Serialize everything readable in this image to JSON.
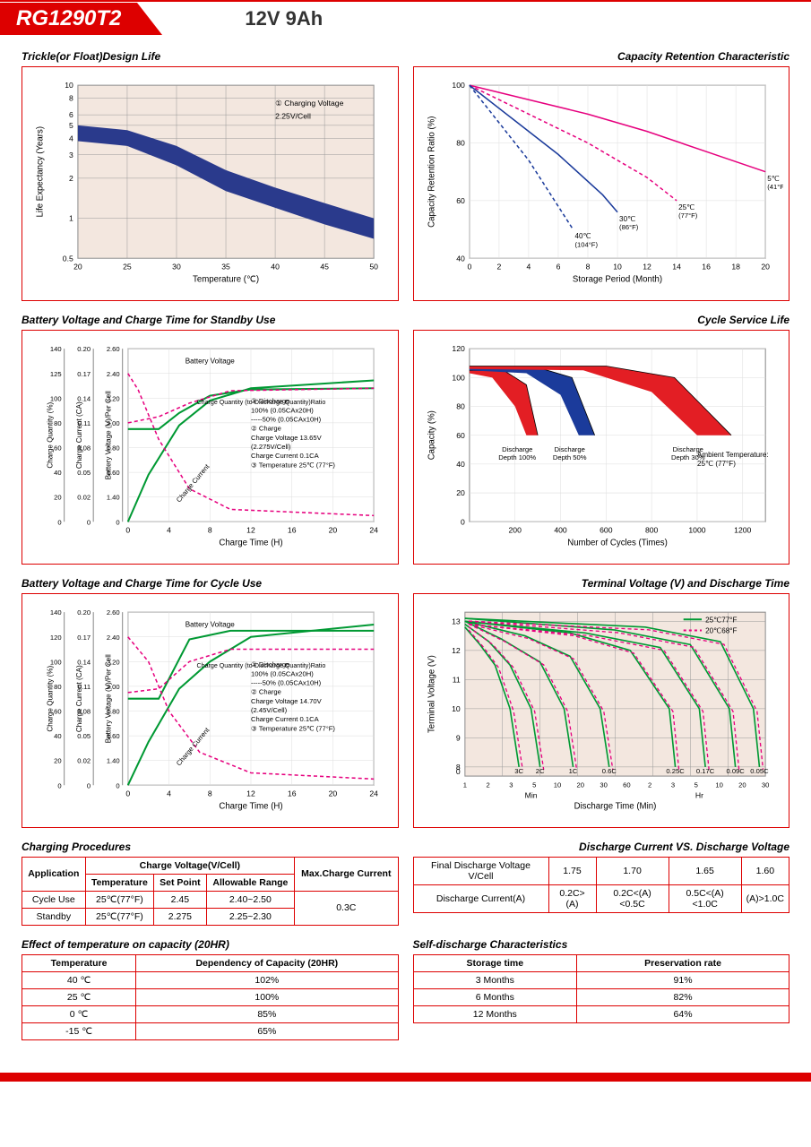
{
  "header": {
    "model": "RG1290T2",
    "spec": "12V  9Ah"
  },
  "charts": {
    "trickle": {
      "title": "Trickle(or Float)Design Life",
      "xlabel": "Temperature (℃)",
      "ylabel": "Life Expectancy (Years)",
      "yticks": [
        "0.5",
        "1",
        "2",
        "3",
        "4",
        "5",
        "6",
        "8",
        "10"
      ],
      "xticks": [
        "20",
        "25",
        "30",
        "35",
        "40",
        "45",
        "50"
      ],
      "note1": "① Charging Voltage",
      "note2": "2.25V/Cell",
      "bg": "#f3e7df",
      "band_color": "#2a3a8c",
      "upper": [
        [
          20,
          5
        ],
        [
          25,
          4.6
        ],
        [
          30,
          3.5
        ],
        [
          35,
          2.3
        ],
        [
          40,
          1.7
        ],
        [
          45,
          1.3
        ],
        [
          50,
          1.0
        ]
      ],
      "lower": [
        [
          20,
          3.8
        ],
        [
          25,
          3.5
        ],
        [
          30,
          2.5
        ],
        [
          35,
          1.6
        ],
        [
          40,
          1.2
        ],
        [
          45,
          0.9
        ],
        [
          50,
          0.7
        ]
      ]
    },
    "retention": {
      "title": "Capacity Retention Characteristic",
      "xlabel": "Storage Period (Month)",
      "ylabel": "Capacity Retention Ratio (%)",
      "xticks": [
        "0",
        "2",
        "4",
        "6",
        "8",
        "10",
        "12",
        "14",
        "16",
        "18",
        "20"
      ],
      "yticks": [
        "40",
        "60",
        "80",
        "100"
      ],
      "series": [
        {
          "color": "#e6007e",
          "label": "5℃",
          "sub": "(41°F)",
          "style": "solid",
          "pts": [
            [
              0,
              100
            ],
            [
              4,
              95
            ],
            [
              8,
              90
            ],
            [
              12,
              84
            ],
            [
              16,
              77
            ],
            [
              20,
              70
            ]
          ]
        },
        {
          "color": "#e6007e",
          "label": "25℃",
          "sub": "(77°F)",
          "style": "dash",
          "pts": [
            [
              0,
              100
            ],
            [
              4,
              90
            ],
            [
              8,
              80
            ],
            [
              12,
              68
            ],
            [
              14,
              60
            ]
          ]
        },
        {
          "color": "#1b3b9b",
          "label": "30℃",
          "sub": "(86°F)",
          "style": "solid",
          "pts": [
            [
              0,
              100
            ],
            [
              3,
              88
            ],
            [
              6,
              76
            ],
            [
              9,
              62
            ],
            [
              10,
              56
            ]
          ]
        },
        {
          "color": "#1b3b9b",
          "label": "40℃",
          "sub": "(104°F)",
          "style": "dash",
          "pts": [
            [
              0,
              100
            ],
            [
              2,
              87
            ],
            [
              4,
              74
            ],
            [
              6,
              58
            ],
            [
              7,
              50
            ]
          ]
        }
      ]
    },
    "standby": {
      "title": "Battery Voltage and Charge Time for Standby Use",
      "xlabel": "Charge Time (H)",
      "xticks": [
        "0",
        "4",
        "8",
        "12",
        "16",
        "20",
        "24"
      ],
      "y1_label": "Charge Quantity (%)",
      "y1_ticks": [
        "0",
        "20",
        "40",
        "60",
        "80",
        "100",
        "125",
        "140"
      ],
      "y2_label": "Charge Current (CA)",
      "y2_ticks": [
        "0",
        "0.02",
        "0.05",
        "0.08",
        "0.11",
        "0.14",
        "0.17",
        "0.20"
      ],
      "y3_label": "Battery Voltage (V)/Per Cell",
      "y3_ticks": [
        "0",
        "1.40",
        "1.60",
        "1.80",
        "2.00",
        "2.20",
        "2.40",
        "2.60"
      ],
      "note_bv": "Battery Voltage",
      "note_cq": "Charge Quantity (to-Discharge Quantity)Ratio",
      "note_cc": "Charge Current",
      "notes": [
        "① Discharge",
        "   100% (0.05CAx20H)",
        "-----50% (0.05CAx10H)",
        "② Charge",
        "   Charge Voltage 13.65V",
        "   (2.275V/Cell)",
        "   Charge Current 0.1CA",
        "③ Temperature 25℃ (77°F)"
      ],
      "green_volt": [
        [
          0,
          1.95
        ],
        [
          3,
          1.95
        ],
        [
          5,
          2.08
        ],
        [
          8,
          2.22
        ],
        [
          12,
          2.27
        ],
        [
          24,
          2.28
        ]
      ],
      "green_qty": [
        [
          0,
          0
        ],
        [
          2,
          38
        ],
        [
          5,
          78
        ],
        [
          8,
          98
        ],
        [
          12,
          110
        ],
        [
          24,
          118
        ]
      ],
      "pink_curr": [
        [
          0,
          0.17
        ],
        [
          1,
          0.15
        ],
        [
          3,
          0.09
        ],
        [
          6,
          0.03
        ],
        [
          10,
          0.01
        ],
        [
          24,
          0.005
        ]
      ],
      "pink_volt": [
        [
          0,
          2.0
        ],
        [
          3,
          2.05
        ],
        [
          6,
          2.16
        ],
        [
          10,
          2.26
        ],
        [
          24,
          2.28
        ]
      ]
    },
    "cycle_life": {
      "title": "Cycle Service Life",
      "xlabel": "Number of Cycles (Times)",
      "ylabel": "Capacity (%)",
      "xticks": [
        "200",
        "400",
        "600",
        "800",
        "1000",
        "1200"
      ],
      "yticks": [
        "0",
        "20",
        "40",
        "60",
        "80",
        "100",
        "120"
      ],
      "note": "Ambient Temperature:\n25℃ (77°F)",
      "bands": [
        {
          "color": "#e31e24",
          "label": "Discharge\nDepth 100%",
          "upper": [
            [
              0,
              105
            ],
            [
              150,
              105
            ],
            [
              250,
              95
            ],
            [
              300,
              60
            ]
          ],
          "lower": [
            [
              0,
              103
            ],
            [
              100,
              100
            ],
            [
              200,
              80
            ],
            [
              250,
              60
            ]
          ]
        },
        {
          "color": "#1b3b9b",
          "label": "Discharge\nDepth 50%",
          "upper": [
            [
              0,
              107
            ],
            [
              300,
              107
            ],
            [
              450,
              100
            ],
            [
              550,
              60
            ]
          ],
          "lower": [
            [
              0,
              105
            ],
            [
              250,
              103
            ],
            [
              400,
              88
            ],
            [
              480,
              60
            ]
          ]
        },
        {
          "color": "#e31e24",
          "label": "Discharge\nDepth 30%",
          "upper": [
            [
              0,
              108
            ],
            [
              600,
              108
            ],
            [
              900,
              100
            ],
            [
              1150,
              60
            ]
          ],
          "lower": [
            [
              0,
              106
            ],
            [
              500,
              105
            ],
            [
              800,
              90
            ],
            [
              1000,
              60
            ]
          ]
        }
      ]
    },
    "cycle": {
      "title": "Battery Voltage and Charge Time for Cycle Use",
      "xlabel": "Charge Time (H)",
      "xticks": [
        "0",
        "4",
        "8",
        "12",
        "16",
        "20",
        "24"
      ],
      "y1_label": "Charge Quantity (%)",
      "y1_ticks": [
        "0",
        "20",
        "40",
        "60",
        "80",
        "100",
        "120",
        "140"
      ],
      "y2_label": "Charge Current (CA)",
      "y2_ticks": [
        "0",
        "0.02",
        "0.05",
        "0.08",
        "0.11",
        "0.14",
        "0.17",
        "0.20"
      ],
      "y3_label": "Battery Voltage (V)/Per Cell",
      "y3_ticks": [
        "0",
        "1.40",
        "1.60",
        "1.80",
        "2.00",
        "2.20",
        "2.40",
        "2.60"
      ],
      "note_bv": "Battery Voltage",
      "note_cq": "Charge Quantity (to-Discharge Quantity)Ratio",
      "note_cc": "Charge Current",
      "notes": [
        "① Discharge",
        "   100% (0.05CAx20H)",
        "-----50% (0.05CAx10H)",
        "② Charge",
        "   Charge Voltage 14.70V",
        "   (2.45V/Cell)",
        "   Charge Current 0.1CA",
        "③ Temperature 25℃ (77°F)"
      ],
      "green_volt": [
        [
          0,
          1.9
        ],
        [
          3,
          1.9
        ],
        [
          6,
          2.38
        ],
        [
          10,
          2.45
        ],
        [
          24,
          2.45
        ]
      ],
      "green_qty": [
        [
          0,
          0
        ],
        [
          2,
          35
        ],
        [
          5,
          78
        ],
        [
          8,
          100
        ],
        [
          12,
          120
        ],
        [
          24,
          130
        ]
      ],
      "pink_curr": [
        [
          0,
          0.17
        ],
        [
          2,
          0.14
        ],
        [
          4,
          0.08
        ],
        [
          7,
          0.03
        ],
        [
          12,
          0.01
        ],
        [
          24,
          0.005
        ]
      ],
      "pink_volt": [
        [
          0,
          1.95
        ],
        [
          3,
          1.98
        ],
        [
          6,
          2.2
        ],
        [
          10,
          2.3
        ],
        [
          24,
          2.3
        ]
      ]
    },
    "discharge": {
      "title": "Terminal Voltage (V) and Discharge Time",
      "xlabel": "Discharge Time (Min)",
      "ylabel": "Terminal Voltage (V)",
      "yticks": [
        "0",
        "8",
        "9",
        "10",
        "11",
        "12",
        "13"
      ],
      "xticks_min": [
        "1",
        "2",
        "3",
        "5",
        "10",
        "20",
        "30",
        "60"
      ],
      "xlabel_min": "Min",
      "xticks_hr": [
        "2",
        "3",
        "5",
        "10",
        "20",
        "30"
      ],
      "xlabel_hr": "Hr",
      "legend": [
        {
          "color": "#009933",
          "style": "solid",
          "label": "25℃77°F"
        },
        {
          "color": "#e6007e",
          "style": "dash",
          "label": "20℃68°F"
        }
      ],
      "bg": "#f3e7df",
      "curves": [
        {
          "label": "3C",
          "pts": [
            [
              0,
              12.8
            ],
            [
              0.05,
              12.2
            ],
            [
              0.1,
              11.5
            ],
            [
              0.15,
              10.0
            ],
            [
              0.18,
              8.0
            ]
          ]
        },
        {
          "label": "2C",
          "pts": [
            [
              0,
              12.9
            ],
            [
              0.08,
              12.3
            ],
            [
              0.15,
              11.5
            ],
            [
              0.22,
              10.0
            ],
            [
              0.25,
              8.0
            ]
          ]
        },
        {
          "label": "1C",
          "pts": [
            [
              0,
              13.0
            ],
            [
              0.12,
              12.4
            ],
            [
              0.25,
              11.6
            ],
            [
              0.33,
              10.0
            ],
            [
              0.36,
              8.0
            ]
          ]
        },
        {
          "label": "0.6C",
          "pts": [
            [
              0,
              13.0
            ],
            [
              0.2,
              12.5
            ],
            [
              0.35,
              11.8
            ],
            [
              0.45,
              10.0
            ],
            [
              0.48,
              8.0
            ]
          ]
        },
        {
          "label": "0.25C",
          "pts": [
            [
              0,
              13.0
            ],
            [
              0.35,
              12.6
            ],
            [
              0.55,
              12.0
            ],
            [
              0.68,
              10.0
            ],
            [
              0.7,
              8.0
            ]
          ]
        },
        {
          "label": "0.17C",
          "pts": [
            [
              0,
              13.0
            ],
            [
              0.4,
              12.6
            ],
            [
              0.65,
              12.1
            ],
            [
              0.78,
              10.0
            ],
            [
              0.8,
              8.0
            ]
          ]
        },
        {
          "label": "0.09C",
          "pts": [
            [
              0,
              13.1
            ],
            [
              0.5,
              12.7
            ],
            [
              0.75,
              12.2
            ],
            [
              0.88,
              10.0
            ],
            [
              0.9,
              8.0
            ]
          ]
        },
        {
          "label": "0.05C",
          "pts": [
            [
              0,
              13.1
            ],
            [
              0.6,
              12.8
            ],
            [
              0.85,
              12.3
            ],
            [
              0.96,
              10.0
            ],
            [
              0.98,
              8.0
            ]
          ]
        }
      ]
    }
  },
  "charging_proc": {
    "title": "Charging Procedures",
    "headers": {
      "app": "Application",
      "cv": "Charge Voltage(V/Cell)",
      "temp": "Temperature",
      "sp": "Set Point",
      "ar": "Allowable Range",
      "max": "Max.Charge Current"
    },
    "rows": [
      [
        "Cycle Use",
        "25℃(77°F)",
        "2.45",
        "2.40~2.50"
      ],
      [
        "Standby",
        "25℃(77°F)",
        "2.275",
        "2.25~2.30"
      ]
    ],
    "max_val": "0.3C"
  },
  "dvsv": {
    "title": "Discharge Current VS. Discharge Voltage",
    "r1h": "Final Discharge Voltage V/Cell",
    "r1": [
      "1.75",
      "1.70",
      "1.65",
      "1.60"
    ],
    "r2h": "Discharge Current(A)",
    "r2": [
      "0.2C>(A)",
      "0.2C<(A)<0.5C",
      "0.5C<(A)<1.0C",
      "(A)>1.0C"
    ]
  },
  "temp_cap": {
    "title": "Effect of temperature on capacity (20HR)",
    "h1": "Temperature",
    "h2": "Dependency of Capacity (20HR)",
    "rows": [
      [
        "40 ℃",
        "102%"
      ],
      [
        "25 ℃",
        "100%"
      ],
      [
        "0 ℃",
        "85%"
      ],
      [
        "-15 ℃",
        "65%"
      ]
    ]
  },
  "self_discharge": {
    "title": "Self-discharge Characteristics",
    "h1": "Storage time",
    "h2": "Preservation rate",
    "rows": [
      [
        "3 Months",
        "91%"
      ],
      [
        "6 Months",
        "82%"
      ],
      [
        "12 Months",
        "64%"
      ]
    ]
  }
}
